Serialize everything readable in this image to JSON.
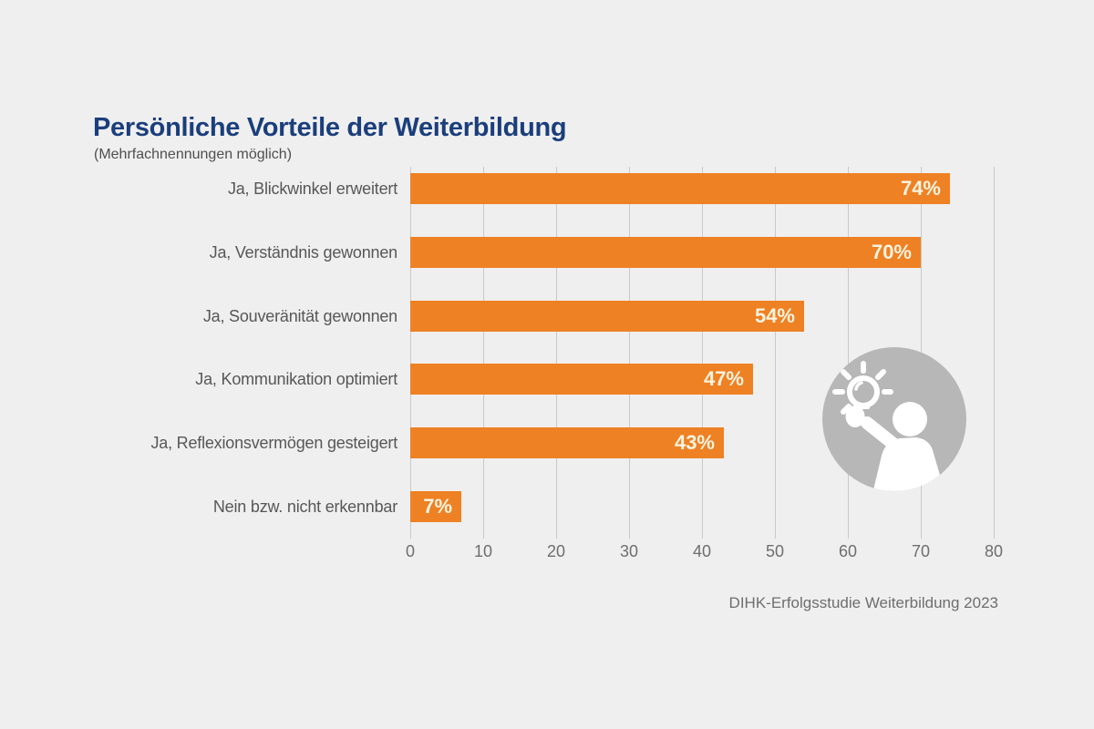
{
  "header": {
    "title": "Persönliche Vorteile der Weiterbildung",
    "subtitle": "(Mehrfachnennungen möglich)"
  },
  "footer": {
    "source": "DIHK-Erfolgsstudie Weiterbildung 2023"
  },
  "icon": {
    "name": "person-raising-lightbulb",
    "description": "gray circle with white silhouette of a person holding up a glowing light bulb"
  },
  "colors": {
    "background": "#efefef",
    "title": "#1b3e7c",
    "subtitle": "#4f4f4f",
    "bar": "#ee8124",
    "bar_label": "#faf3de",
    "category_label": "#575757",
    "axis_label": "#6e6e6e",
    "gridline": "#c9c9c9",
    "source_text": "#6e6e6e",
    "icon_circle": "#b7b7b7",
    "icon_figure": "#ffffff"
  },
  "chart_data": {
    "type": "bar",
    "orientation": "horizontal",
    "title": "Persönliche Vorteile der Weiterbildung",
    "subtitle": "(Mehrfachnennungen möglich)",
    "categories": [
      "Ja, Blickwinkel erweitert",
      "Ja, Verständnis gewonnen",
      "Ja, Souveränität gewonnen",
      "Ja, Kommunikation optimiert",
      "Ja, Reflexionsvermögen gesteigert",
      "Nein bzw. nicht erkennbar"
    ],
    "values": [
      74,
      70,
      54,
      47,
      43,
      7
    ],
    "value_labels": [
      "74%",
      "70%",
      "54%",
      "47%",
      "43%",
      "7%"
    ],
    "xlim": [
      0,
      80
    ],
    "x_ticks": [
      0,
      10,
      20,
      30,
      40,
      50,
      60,
      70,
      80
    ],
    "grid": true,
    "legend": false,
    "value_label_position": "inside-end",
    "source": "DIHK-Erfolgsstudie Weiterbildung 2023"
  }
}
